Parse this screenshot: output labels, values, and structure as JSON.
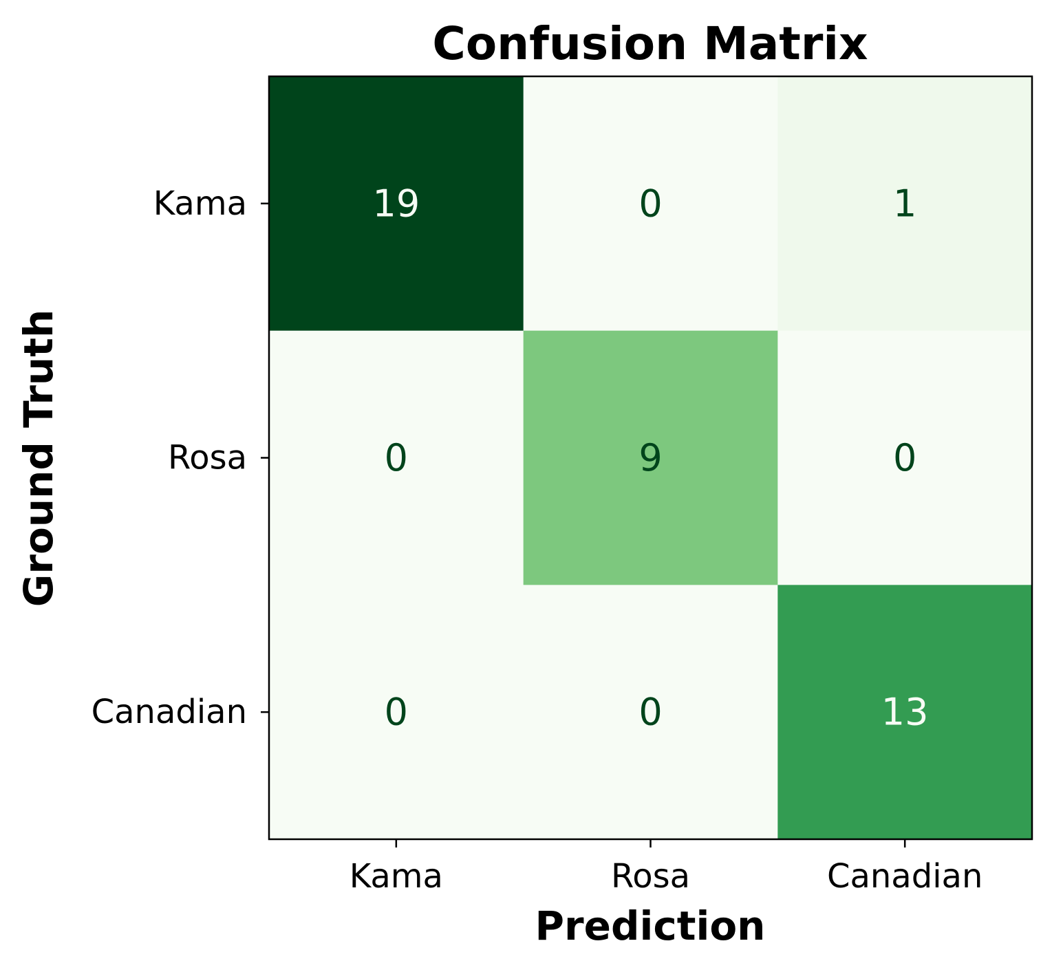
{
  "chart_data": {
    "type": "heatmap",
    "title": "Confusion Matrix",
    "xlabel": "Prediction",
    "ylabel": "Ground Truth",
    "x_categories": [
      "Kama",
      "Rosa",
      "Canadian"
    ],
    "y_categories": [
      "Kama",
      "Rosa",
      "Canadian"
    ],
    "values": [
      [
        19,
        0,
        1
      ],
      [
        0,
        9,
        0
      ],
      [
        0,
        0,
        13
      ]
    ],
    "colormap": "Greens",
    "colors": {
      "low": "#f7fcf5",
      "high": "#00441b",
      "text_dark": "#00441b",
      "text_light": "#f7fcf5"
    }
  }
}
